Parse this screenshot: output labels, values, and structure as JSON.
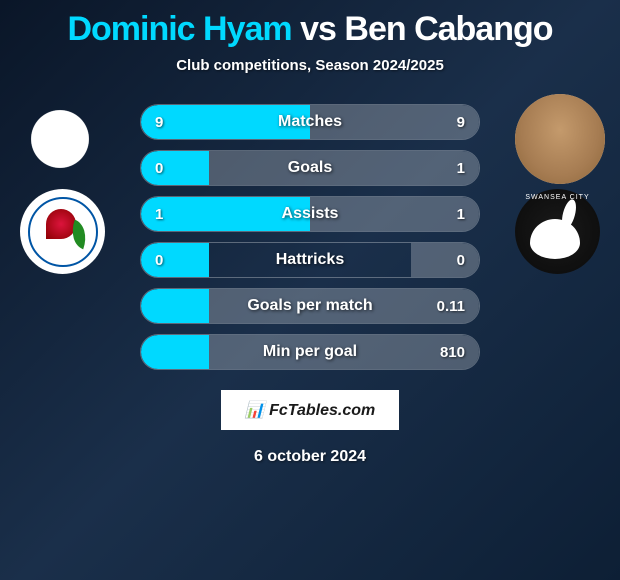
{
  "title": {
    "player1": "Dominic Hyam",
    "vs": "vs",
    "player2": "Ben Cabango"
  },
  "subtitle": "Club competitions, Season 2024/2025",
  "colors": {
    "player1_accent": "#00d9ff",
    "player2_accent": "#ffffff",
    "fill_left": "#00d9ff",
    "fill_right": "rgba(255,255,255,0.25)",
    "background_gradient": [
      "#0a1628",
      "#1a2f4a",
      "#0d1f35"
    ]
  },
  "stats": [
    {
      "label": "Matches",
      "left_val": "9",
      "right_val": "9",
      "left_pct": 50,
      "right_pct": 50
    },
    {
      "label": "Goals",
      "left_val": "0",
      "right_val": "1",
      "left_pct": 20,
      "right_pct": 80
    },
    {
      "label": "Assists",
      "left_val": "1",
      "right_val": "1",
      "left_pct": 50,
      "right_pct": 50
    },
    {
      "label": "Hattricks",
      "left_val": "0",
      "right_val": "0",
      "left_pct": 20,
      "right_pct": 20
    },
    {
      "label": "Goals per match",
      "left_val": "",
      "right_val": "0.11",
      "left_pct": 20,
      "right_pct": 80
    },
    {
      "label": "Min per goal",
      "left_val": "",
      "right_val": "810",
      "left_pct": 20,
      "right_pct": 80
    }
  ],
  "footer_brand": "FcTables.com",
  "date": "6 october 2024",
  "club_left_name": "Blackburn Rovers",
  "club_right_name": "Swansea City"
}
